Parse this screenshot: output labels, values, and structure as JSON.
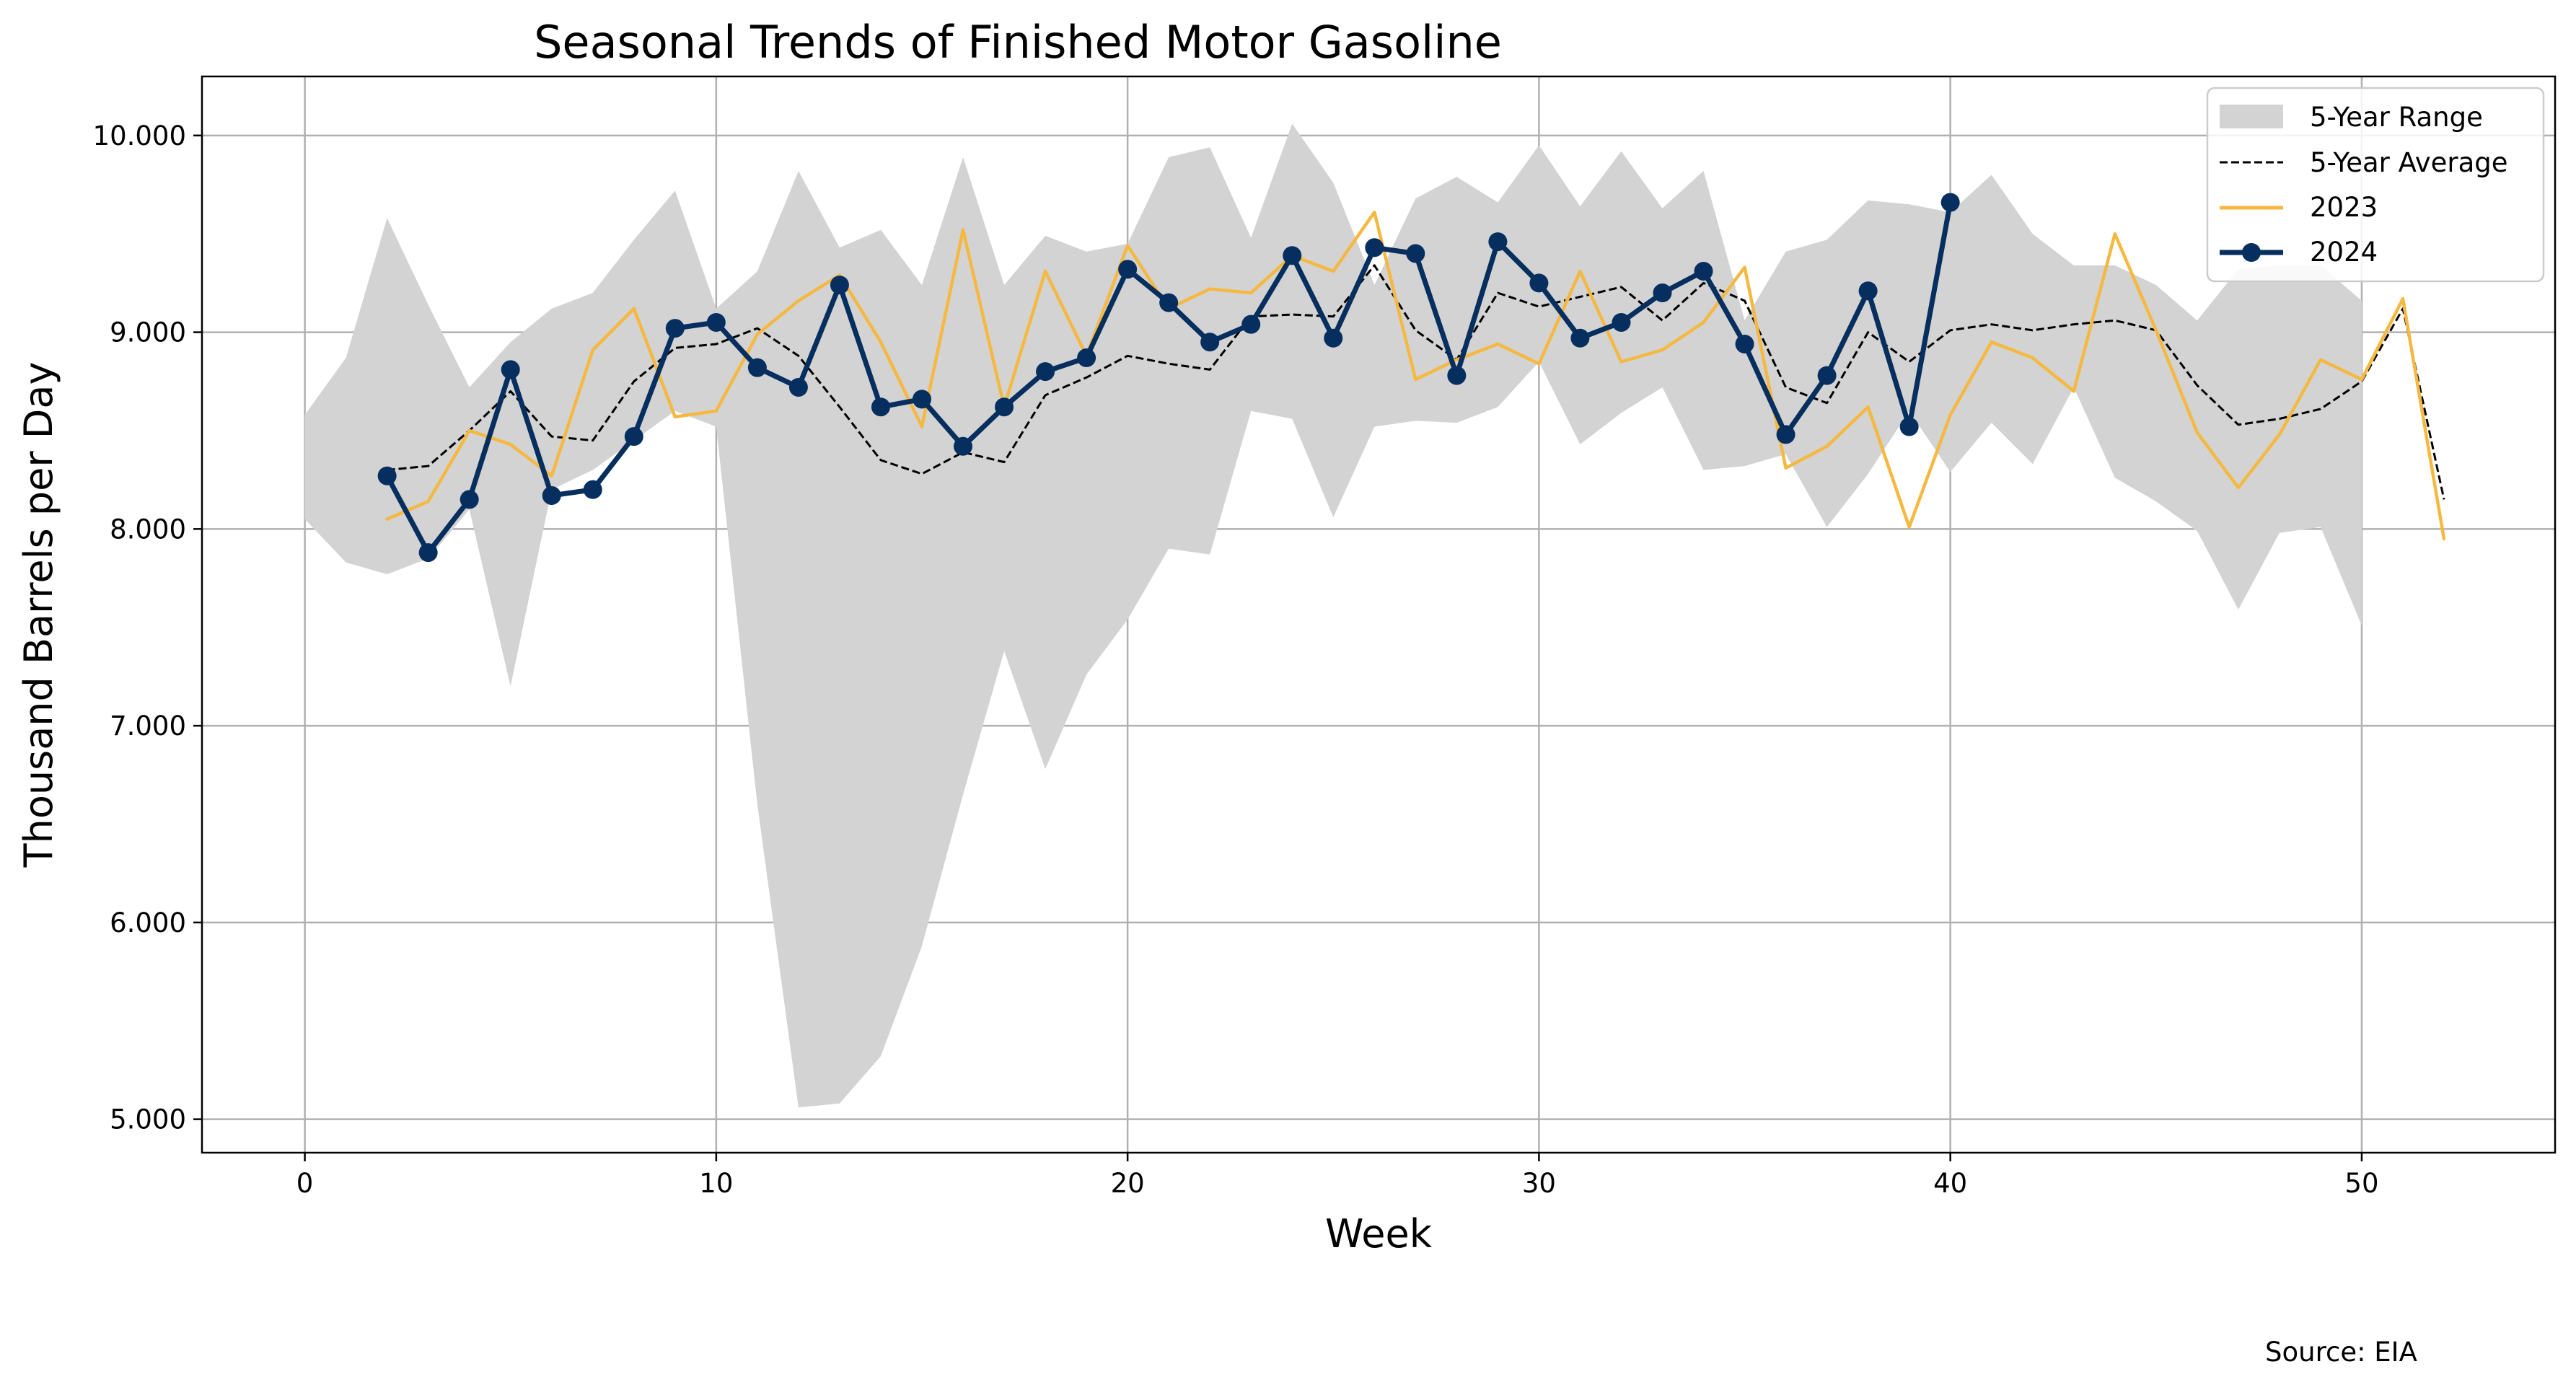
{
  "chart_data": {
    "type": "line",
    "title": "Seasonal Trends of Finished Motor Gasoline",
    "xlabel": "Week",
    "ylabel": "Thousand Barrels per Day",
    "xlim": [
      -2.5,
      54.7
    ],
    "ylim": [
      4830,
      10300
    ],
    "x_ticks": [
      0,
      10,
      20,
      30,
      40,
      50
    ],
    "x_tick_labels": [
      "0",
      "10",
      "20",
      "30",
      "40",
      "50"
    ],
    "y_ticks": [
      5000,
      6000,
      7000,
      8000,
      9000,
      10000
    ],
    "y_tick_labels": [
      "5.000",
      "6.000",
      "7.000",
      "8.000",
      "9.000",
      "10.000"
    ],
    "grid": true,
    "legend_position": "top-right",
    "source": "Source: EIA",
    "series": [
      {
        "name": "5-Year Range",
        "kind": "band",
        "color": "#d3d3d3",
        "x": [
          0,
          1,
          2,
          3,
          4,
          5,
          6,
          7,
          8,
          9,
          10,
          11,
          12,
          13,
          14,
          15,
          16,
          17,
          18,
          19,
          20,
          21,
          22,
          23,
          24,
          25,
          26,
          27,
          28,
          29,
          30,
          31,
          32,
          33,
          34,
          35,
          36,
          37,
          38,
          39,
          40,
          41,
          42,
          43,
          44,
          45,
          46,
          47,
          48,
          49,
          50
        ],
        "lower": [
          8050,
          7830,
          7770,
          7850,
          8100,
          7200,
          8200,
          8300,
          8450,
          8600,
          8520,
          6600,
          5060,
          5080,
          5320,
          5880,
          6650,
          7380,
          6780,
          7260,
          7540,
          7900,
          7870,
          8600,
          8560,
          8060,
          8520,
          8550,
          8540,
          8620,
          8850,
          8430,
          8590,
          8720,
          8300,
          8320,
          8380,
          8010,
          8280,
          8600,
          8290,
          8540,
          8330,
          8720,
          8260,
          8140,
          7990,
          7590,
          7980,
          8010,
          7510
        ],
        "upper": [
          8580,
          8870,
          9580,
          9140,
          8720,
          8950,
          9120,
          9200,
          9470,
          9720,
          9120,
          9310,
          9820,
          9430,
          9520,
          9240,
          9890,
          9240,
          9490,
          9410,
          9450,
          9890,
          9940,
          9480,
          10060,
          9760,
          9240,
          9680,
          9790,
          9660,
          9950,
          9640,
          9920,
          9630,
          9820,
          9060,
          9410,
          9470,
          9670,
          9650,
          9610,
          9800,
          9500,
          9340,
          9340,
          9240,
          9060,
          9320,
          9340,
          9340,
          9160
        ]
      },
      {
        "name": "5-Year Average",
        "kind": "line",
        "color": "#000000",
        "dash": true,
        "x": [
          2,
          3,
          4,
          5,
          6,
          7,
          8,
          9,
          10,
          11,
          12,
          13,
          14,
          15,
          16,
          17,
          18,
          19,
          20,
          21,
          22,
          23,
          24,
          25,
          26,
          27,
          28,
          29,
          30,
          31,
          32,
          33,
          34,
          35,
          36,
          37,
          38,
          39,
          40,
          41,
          42,
          43,
          44,
          45,
          46,
          47,
          48,
          49,
          50,
          51,
          52
        ],
        "values": [
          8300,
          8320,
          8500,
          8700,
          8470,
          8450,
          8750,
          8920,
          8940,
          9020,
          8880,
          8620,
          8350,
          8280,
          8390,
          8340,
          8680,
          8770,
          8880,
          8840,
          8810,
          9080,
          9090,
          9080,
          9340,
          9010,
          8860,
          9200,
          9130,
          9180,
          9230,
          9060,
          9250,
          9160,
          8720,
          8640,
          9000,
          8850,
          9010,
          9040,
          9010,
          9040,
          9060,
          9010,
          8730,
          8530,
          8560,
          8610,
          8750,
          9120,
          8150
        ]
      },
      {
        "name": "2023",
        "kind": "line",
        "color": "#f5b841",
        "x": [
          2,
          3,
          4,
          5,
          6,
          7,
          8,
          9,
          10,
          11,
          12,
          13,
          14,
          15,
          16,
          17,
          18,
          19,
          20,
          21,
          22,
          23,
          24,
          25,
          26,
          27,
          28,
          29,
          30,
          31,
          32,
          33,
          34,
          35,
          36,
          37,
          38,
          39,
          40,
          41,
          42,
          43,
          44,
          45,
          46,
          47,
          48,
          49,
          50,
          51,
          52
        ],
        "values": [
          8050,
          8140,
          8500,
          8430,
          8270,
          8910,
          9120,
          8570,
          8600,
          8990,
          9160,
          9290,
          8950,
          8520,
          9520,
          8620,
          9310,
          8880,
          9440,
          9120,
          9220,
          9200,
          9390,
          9310,
          9610,
          8760,
          8860,
          8940,
          8840,
          9310,
          8850,
          8910,
          9050,
          9330,
          8310,
          8420,
          8620,
          8010,
          8580,
          8950,
          8870,
          8700,
          9500,
          9010,
          8490,
          8210,
          8480,
          8860,
          8760,
          9170,
          7950
        ]
      },
      {
        "name": "2024",
        "kind": "line-markers",
        "color": "#062e5e",
        "x": [
          2,
          3,
          4,
          5,
          6,
          7,
          8,
          9,
          10,
          11,
          12,
          13,
          14,
          15,
          16,
          17,
          18,
          19,
          20,
          21,
          22,
          23,
          24,
          25,
          26,
          27,
          28,
          29,
          30,
          31,
          32,
          33,
          34,
          35,
          36,
          37,
          38,
          39,
          40
        ],
        "values": [
          8270,
          7880,
          8150,
          8810,
          8170,
          8200,
          8470,
          9020,
          9050,
          8820,
          8720,
          9240,
          8620,
          8660,
          8420,
          8620,
          8800,
          8870,
          9320,
          9150,
          8950,
          9040,
          9390,
          8970,
          9430,
          9400,
          8780,
          9460,
          9250,
          8970,
          9050,
          9200,
          9310,
          8940,
          8480,
          8780,
          9210,
          8520,
          9660
        ]
      }
    ]
  }
}
